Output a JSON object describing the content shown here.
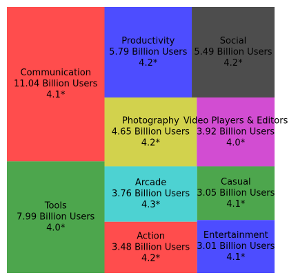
{
  "chart_data": {
    "type": "treemap",
    "title": "",
    "xlabel": "",
    "ylabel": "",
    "categories": [
      "Communication",
      "Tools",
      "Productivity",
      "Social",
      "Photography",
      "Video Players & Editors",
      "Arcade",
      "Action",
      "Casual",
      "Entertainment"
    ],
    "values": [
      11.04,
      7.99,
      5.79,
      5.49,
      4.65,
      3.92,
      3.76,
      3.48,
      3.05,
      3.01
    ],
    "unit": "Billion Users",
    "ratings": [
      "4.1*",
      "4.0*",
      "4.2*",
      "4.2*",
      "4.2*",
      "4.0*",
      "4.3*",
      "4.2*",
      "4.1*",
      "4.1*"
    ],
    "colors": [
      "#ff4d4d",
      "#4da64d",
      "#4d4dff",
      "#4d4d4d",
      "#d2d24d",
      "#d24dd2",
      "#4dd2d2",
      "#ff4d4d",
      "#4da64d",
      "#4d4dff"
    ]
  }
}
